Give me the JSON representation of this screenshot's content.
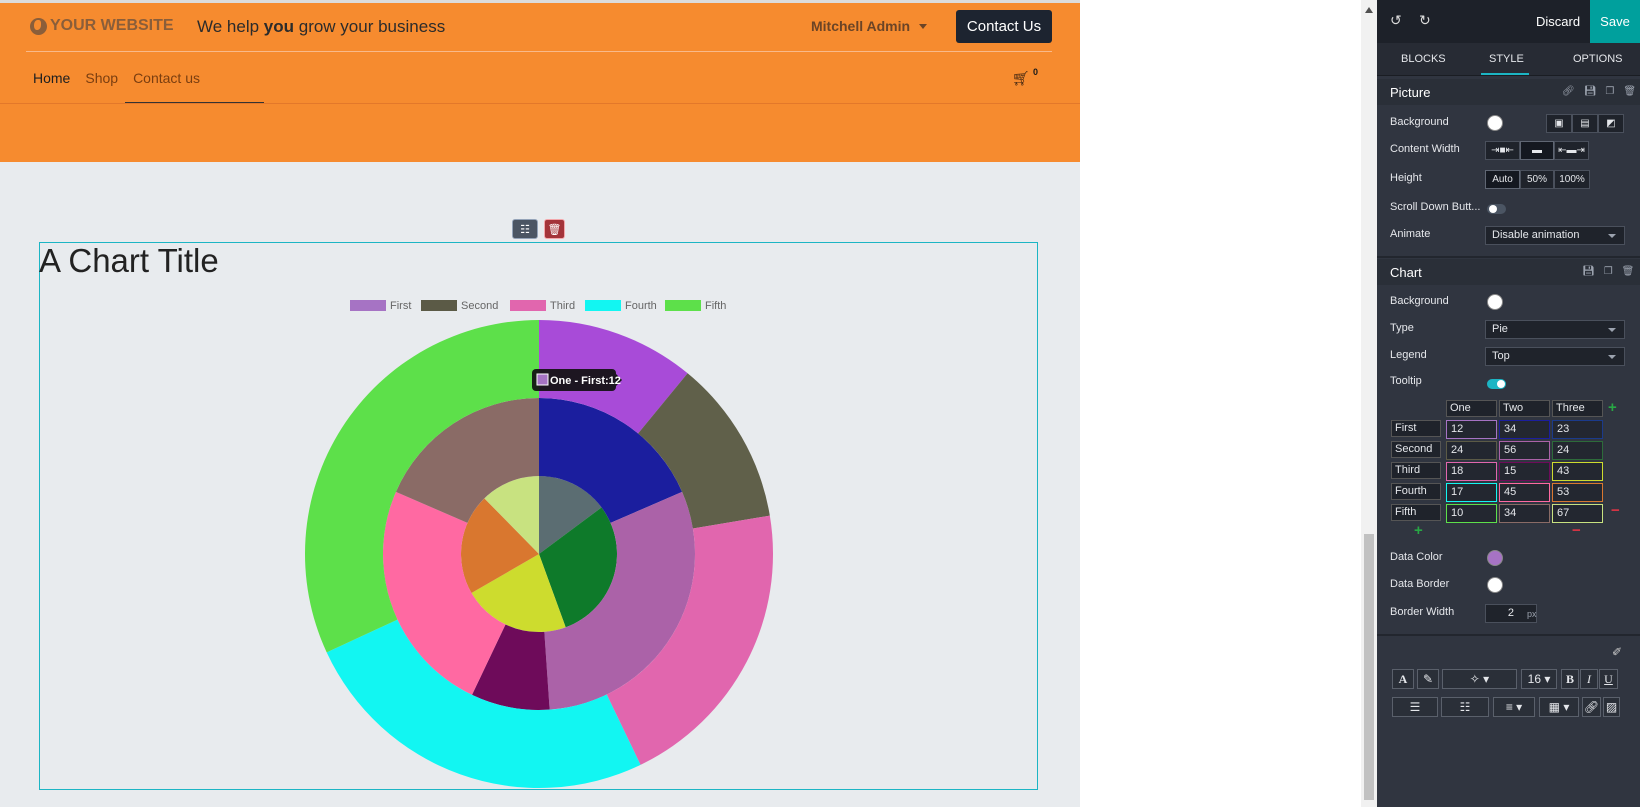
{
  "site": {
    "logo_text": "YOUR WEBSITE",
    "tagline_before": "We help ",
    "tagline_bold": "you",
    "tagline_after": " grow your business",
    "user_name": "Mitchell Admin",
    "contact_button": "Contact Us",
    "nav": [
      "Home",
      "Shop",
      "Contact us"
    ],
    "cart_count": "0",
    "chart_title": "A Chart Title"
  },
  "chart_data": {
    "type": "pie",
    "categories": [
      "First",
      "Second",
      "Third",
      "Fourth",
      "Fifth"
    ],
    "series": [
      {
        "name": "One",
        "values": [
          12,
          24,
          18,
          17,
          10
        ],
        "colors": [
          "#5b6d72",
          "#0e7a2a",
          "#cddc2e",
          "#d9772f",
          "#c8e280"
        ]
      },
      {
        "name": "Two",
        "values": [
          34,
          56,
          15,
          45,
          34
        ],
        "colors": [
          "#1b1e9e",
          "#ab62a8",
          "#6e0b5a",
          "#ff69a2",
          "#8a6b66"
        ]
      },
      {
        "name": "Three",
        "values": [
          23,
          24,
          43,
          53,
          67
        ],
        "colors": [
          "#a84bd8",
          "#60604a",
          "#e166ae",
          "#12f6f2",
          "#5de04a"
        ]
      }
    ],
    "legend": {
      "position": "top",
      "labels": [
        "First",
        "Second",
        "Third",
        "Fourth",
        "Fifth"
      ],
      "colors": [
        "#a673c4",
        "#5b5a46",
        "#e166ae",
        "#12f6f2",
        "#5de04a"
      ]
    },
    "tooltip": {
      "swatch_color": "#a673c4",
      "text": "One - First:12"
    }
  },
  "panel": {
    "discard": "Discard",
    "save": "Save",
    "tabs": [
      "BLOCKS",
      "STYLE",
      "OPTIONS"
    ],
    "picture": {
      "title": "Picture",
      "background_label": "Background",
      "content_width_label": "Content Width",
      "height_label": "Height",
      "height_options": [
        "Auto",
        "50%",
        "100%"
      ],
      "scroll_label": "Scroll Down Butt...",
      "animate_label": "Animate",
      "animate_value": "Disable animation"
    },
    "chart": {
      "title": "Chart",
      "background_label": "Background",
      "type_label": "Type",
      "type_value": "Pie",
      "legend_label": "Legend",
      "legend_value": "Top",
      "tooltip_label": "Tooltip",
      "columns": [
        "One",
        "Two",
        "Three"
      ],
      "rows": [
        "First",
        "Second",
        "Third",
        "Fourth",
        "Fifth"
      ],
      "cells": [
        [
          "12",
          "34",
          "23"
        ],
        [
          "24",
          "56",
          "24"
        ],
        [
          "18",
          "15",
          "43"
        ],
        [
          "17",
          "45",
          "53"
        ],
        [
          "10",
          "34",
          "67"
        ]
      ],
      "row_colors": [
        "#a673c4",
        "#5b5a46",
        "#e166ae",
        "#12f6f2",
        "#5de04a"
      ],
      "col_colors": [
        [
          "#a673c4",
          "#1b1e9e",
          "#1b3a8a"
        ],
        [
          "#5b5a46",
          "#ab62a8",
          "#2d6b3a"
        ],
        [
          "#e166ae",
          "#6e0b5a",
          "#cddc2e"
        ],
        [
          "#12f6f2",
          "#ff69a2",
          "#d9772f"
        ],
        [
          "#5de04a",
          "#8a6b66",
          "#c8e280"
        ]
      ],
      "data_color_label": "Data Color",
      "data_color": "#a673c4",
      "data_border_label": "Data Border",
      "border_width_label": "Border Width",
      "border_width_value": "2",
      "border_width_unit": "px"
    },
    "toolbar": {
      "font_size": "16"
    }
  }
}
